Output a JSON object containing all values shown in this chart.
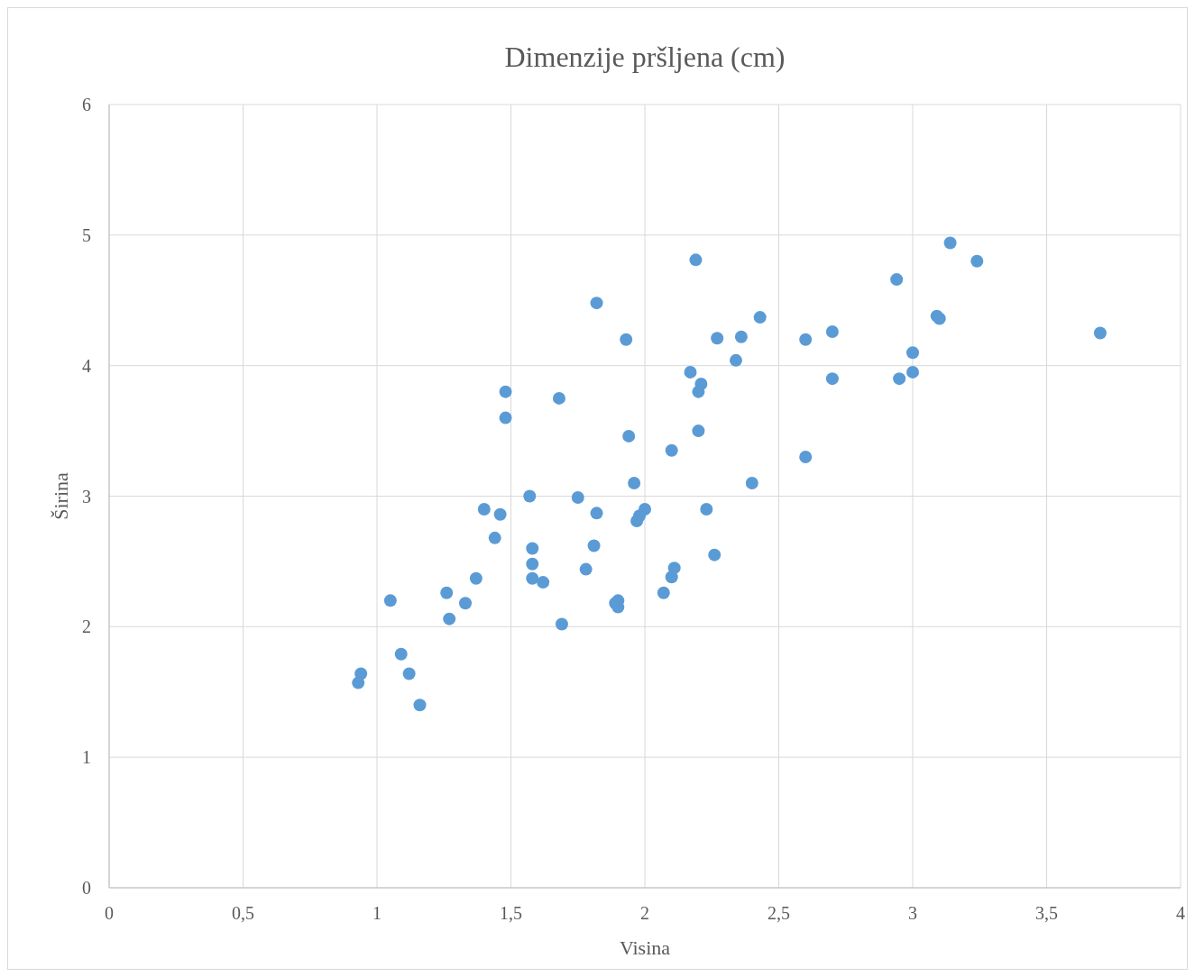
{
  "chart_data": {
    "type": "scatter",
    "title": "Dimenzije pršljena (cm)",
    "xlabel": "Visina",
    "ylabel": "Širina",
    "grid": true,
    "marker": "circle",
    "xlim": [
      0,
      4
    ],
    "xticks": [
      0,
      {
        "value": 0.5,
        "label": "0,5"
      },
      1,
      {
        "value": 1.5,
        "label": "1,5"
      },
      2,
      {
        "value": 2.5,
        "label": "2,5"
      },
      3,
      {
        "value": 3.5,
        "label": "3,5"
      },
      4
    ],
    "ylim": [
      0,
      6
    ],
    "yticks": [
      0,
      1,
      2,
      3,
      4,
      5,
      6
    ],
    "series": [
      {
        "color": "#5b9bd5",
        "x": [
          0.93,
          0.94,
          1.05,
          1.09,
          1.12,
          1.16,
          1.26,
          1.27,
          1.33,
          1.37,
          1.4,
          1.44,
          1.46,
          1.48,
          1.48,
          1.57,
          1.58,
          1.58,
          1.58,
          1.62,
          1.68,
          1.69,
          1.75,
          1.78,
          1.81,
          1.82,
          1.82,
          1.89,
          1.9,
          1.9,
          1.93,
          1.94,
          1.96,
          1.97,
          1.98,
          2.0,
          2.07,
          2.1,
          2.1,
          2.11,
          2.17,
          2.19,
          2.2,
          2.2,
          2.21,
          2.23,
          2.26,
          2.27,
          2.34,
          2.36,
          2.4,
          2.43,
          2.6,
          2.6,
          2.7,
          2.7,
          2.94,
          2.95,
          3.0,
          3.0,
          3.09,
          3.1,
          3.14,
          3.24,
          3.7
        ],
        "values": [
          1.57,
          1.64,
          2.2,
          1.79,
          1.64,
          1.4,
          2.26,
          2.06,
          2.18,
          2.37,
          2.9,
          2.68,
          2.86,
          3.8,
          3.6,
          3.0,
          2.6,
          2.48,
          2.37,
          2.34,
          3.75,
          2.02,
          2.99,
          2.44,
          2.62,
          4.48,
          2.87,
          2.18,
          2.2,
          2.15,
          4.2,
          3.46,
          3.1,
          2.81,
          2.85,
          2.9,
          2.26,
          3.35,
          2.38,
          2.45,
          3.95,
          4.81,
          3.8,
          3.5,
          3.86,
          2.9,
          2.55,
          4.21,
          4.04,
          4.22,
          3.1,
          4.37,
          4.2,
          3.3,
          4.26,
          3.9,
          4.66,
          3.9,
          4.1,
          3.95,
          4.38,
          4.36,
          4.94,
          4.8,
          4.25
        ]
      }
    ]
  }
}
